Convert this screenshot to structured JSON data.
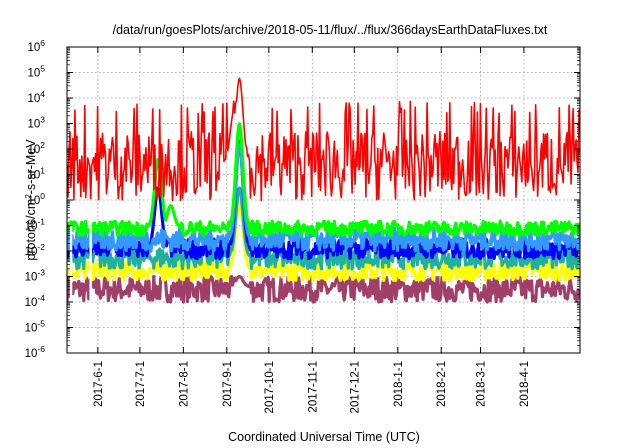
{
  "chart_data": {
    "type": "line",
    "title": "/data/run/goesPlots/archive/2018-05-11/flux/../flux/366daysEarthDataFluxes.txt",
    "xlabel": "Coordinated Universal Time (UTC)",
    "ylabel_parts": {
      "base": "protons/cm",
      "sup": "2",
      "rest": "-s-sr-MeV"
    },
    "x_range": [
      "2017-05-10",
      "2018-05-11"
    ],
    "x_ticks": [
      "2017-6-1",
      "2017-7-1",
      "2017-8-1",
      "2017-9-1",
      "2017-10-1",
      "2017-11-1",
      "2017-12-1",
      "2018-1-1",
      "2018-2-1",
      "2018-3-1",
      "2018-4-1"
    ],
    "y_scale": "log",
    "y_range": [
      1e-06,
      1000000.0
    ],
    "y_ticks": [
      {
        "base": "10",
        "exp": "-6"
      },
      {
        "base": "10",
        "exp": "-5"
      },
      {
        "base": "10",
        "exp": "-4"
      },
      {
        "base": "10",
        "exp": "-3"
      },
      {
        "base": "10",
        "exp": "-2"
      },
      {
        "base": "10",
        "exp": "-1"
      },
      {
        "base": "10",
        "exp": "0"
      },
      {
        "base": "10",
        "exp": "1"
      },
      {
        "base": "10",
        "exp": "2"
      },
      {
        "base": "10",
        "exp": "3"
      },
      {
        "base": "10",
        "exp": "4"
      },
      {
        "base": "10",
        "exp": "5"
      },
      {
        "base": "10",
        "exp": "6"
      }
    ],
    "grid": true,
    "series": [
      {
        "color": "#a0406a",
        "band": [
          0.0001,
          0.001
        ],
        "typical": 0.0004,
        "events": [
          {
            "date": "2017-09-10",
            "peak": 0.001
          }
        ]
      },
      {
        "color": "#ffff00",
        "band": [
          0.0007,
          0.004
        ],
        "typical": 0.002,
        "events": [
          {
            "date": "2017-09-10",
            "peak": 1
          }
        ]
      },
      {
        "color": "#20b0a0",
        "band": [
          0.002,
          0.015
        ],
        "typical": 0.006,
        "events": [
          {
            "date": "2017-09-10",
            "peak": 3
          }
        ]
      },
      {
        "color": "#0000ff",
        "band": [
          0.005,
          0.03
        ],
        "typical": 0.012,
        "events": [
          {
            "date": "2017-07-14",
            "peak": 3
          },
          {
            "date": "2017-09-10",
            "peak": 200
          }
        ]
      },
      {
        "color": "#3399ff",
        "band": [
          0.01,
          0.08
        ],
        "typical": 0.03,
        "events": [
          {
            "date": "2017-09-10",
            "peak": 150
          }
        ]
      },
      {
        "color": "#00ff00",
        "band": [
          0.04,
          0.15
        ],
        "typical": 0.08,
        "events": [
          {
            "date": "2017-07-14",
            "peak": 40
          },
          {
            "date": "2017-07-23",
            "peak": 0.6
          },
          {
            "date": "2017-09-10",
            "peak": 1000
          }
        ]
      },
      {
        "color": "#ff0000",
        "band": [
          1,
          1000
        ],
        "typical": 30,
        "events": [
          {
            "date": "2017-09-06",
            "peak": 3000
          },
          {
            "date": "2017-09-10",
            "peak": 60000
          }
        ]
      }
    ]
  }
}
